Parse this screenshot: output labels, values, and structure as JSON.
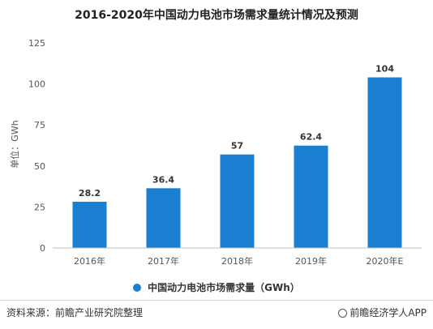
{
  "chart_data": {
    "type": "bar",
    "title": "2016-2020年中国动力电池市场需求量统计情况及预测",
    "ylabel": "单位：GWh",
    "xlabel": "",
    "categories": [
      "2016年",
      "2017年",
      "2018年",
      "2019年",
      "2020年E"
    ],
    "series": [
      {
        "name": "中国动力电池市场需求量（GWh）",
        "values": [
          28.2,
          36.4,
          57,
          62.4,
          104
        ]
      }
    ],
    "data_labels": [
      "28.2",
      "36.4",
      "57",
      "62.4",
      "104"
    ],
    "ylim": [
      0,
      125
    ],
    "yticks": [
      0,
      25,
      50,
      75,
      100,
      125
    ],
    "grid": false,
    "legend_position": "bottom",
    "bar_color": "#1a7fd1"
  },
  "footer": {
    "source": "资料来源：前瞻产业研究院整理",
    "brand": "前瞻经济学人APP"
  },
  "brand_icon": "qianzhan-logo-icon"
}
